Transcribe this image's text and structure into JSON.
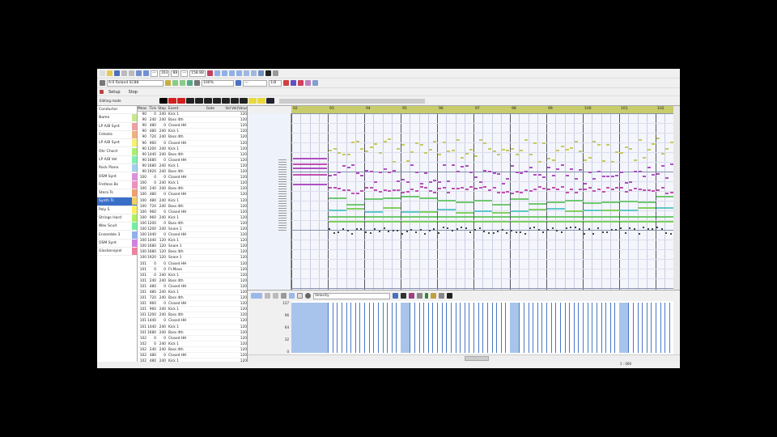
{
  "toolbar": {
    "row1": {
      "fields": [
        "---",
        "163",
        "88",
        "---",
        "158.88"
      ]
    },
    "row2": {
      "device_field": "A:0 Roland SC88",
      "mode_field": "100%",
      "zoom_field": "---",
      "snap_field": "1/8"
    },
    "row3": {
      "setup_label": "Setup",
      "stop_label": "Stop"
    },
    "palette_label": "Editing mode"
  },
  "tracks": [
    {
      "name": "Conductor",
      "color": "#ffffff"
    },
    {
      "name": "Name",
      "color": "#c8e890"
    },
    {
      "name": "LP A/B Synt",
      "color": "#f0a0a0"
    },
    {
      "name": "Celesta",
      "color": "#f0b080"
    },
    {
      "name": "LP A/B Synt",
      "color": "#f8f070"
    },
    {
      "name": "Ohr Chord",
      "color": "#a8f070"
    },
    {
      "name": "LP A/B Vel",
      "color": "#80f0b0"
    },
    {
      "name": "Rock Piano",
      "color": "#a0d0f0"
    },
    {
      "name": "OSM Synt",
      "color": "#e090e0"
    },
    {
      "name": "Fretless Bs",
      "color": "#f090c0"
    },
    {
      "name": "Stera Ts",
      "color": "#f0a070"
    },
    {
      "name": "Synth Ts",
      "color": "#f0d060",
      "selected": true
    },
    {
      "name": "Poly S",
      "color": "#f8f060"
    },
    {
      "name": "Strings Hard",
      "color": "#b0f060"
    },
    {
      "name": "Wav Scud",
      "color": "#70f0a0"
    },
    {
      "name": "Ensemble 3",
      "color": "#90b0f0"
    },
    {
      "name": "OSM Synt",
      "color": "#d080e0"
    },
    {
      "name": "Glockenspiel",
      "color": "#f080a0"
    }
  ],
  "event_list": {
    "headers": [
      "Meas",
      "Tick",
      "Step",
      "Event",
      "Gate",
      "Vel",
      "Vel(Value)"
    ],
    "rows": [
      [
        "90",
        "0",
        "240",
        "Kick 1",
        "",
        "",
        "120"
      ],
      [
        "90",
        "240",
        "240",
        "Bass 4th",
        "",
        "",
        "120"
      ],
      [
        "90",
        "480",
        "0",
        "Closed HH",
        "",
        "",
        "120"
      ],
      [
        "90",
        "480",
        "240",
        "Kick 1",
        "",
        "",
        "120"
      ],
      [
        "90",
        "720",
        "240",
        "Bass 4th",
        "",
        "",
        "120"
      ],
      [
        "90",
        "960",
        "0",
        "Closed HH",
        "",
        "",
        "120"
      ],
      [
        "90",
        "1200",
        "240",
        "Kick 1",
        "",
        "",
        "120"
      ],
      [
        "90",
        "1440",
        "240",
        "Bass 4th",
        "",
        "",
        "120"
      ],
      [
        "90",
        "1680",
        "0",
        "Closed HH",
        "",
        "",
        "120"
      ],
      [
        "90",
        "1680",
        "240",
        "Kick 1",
        "",
        "",
        "120"
      ],
      [
        "90",
        "1920",
        "240",
        "Bass 4th",
        "",
        "",
        "120"
      ],
      [
        "100",
        "0",
        "0",
        "Closed HH",
        "",
        "",
        "120"
      ],
      [
        "100",
        "0",
        "240",
        "Kick 1",
        "",
        "",
        "120"
      ],
      [
        "100",
        "240",
        "240",
        "Bass 4th",
        "",
        "",
        "120"
      ],
      [
        "100",
        "480",
        "0",
        "Closed HH",
        "",
        "",
        "120"
      ],
      [
        "100",
        "480",
        "240",
        "Kick 1",
        "",
        "",
        "120"
      ],
      [
        "100",
        "720",
        "240",
        "Bass 4th",
        "",
        "",
        "120"
      ],
      [
        "100",
        "960",
        "0",
        "Closed HH",
        "",
        "",
        "120"
      ],
      [
        "100",
        "960",
        "240",
        "Kick 1",
        "",
        "",
        "120"
      ],
      [
        "100",
        "1200",
        "0",
        "Bass 4th",
        "",
        "",
        "120"
      ],
      [
        "100",
        "1200",
        "240",
        "Snare 1",
        "",
        "",
        "120"
      ],
      [
        "100",
        "1440",
        "0",
        "Closed HH",
        "",
        "",
        "120"
      ],
      [
        "100",
        "1440",
        "120",
        "Kick 1",
        "",
        "",
        "120"
      ],
      [
        "100",
        "1680",
        "120",
        "Snare 1",
        "",
        "",
        "120"
      ],
      [
        "100",
        "1680",
        "120",
        "Bass 4th",
        "",
        "",
        "120"
      ],
      [
        "100",
        "1920",
        "120",
        "Snare 1",
        "",
        "",
        "120"
      ],
      [
        "101",
        "0",
        "0",
        "Closed HH",
        "",
        "",
        "120"
      ],
      [
        "101",
        "0",
        "0",
        "Ft.Move",
        "",
        "",
        "120"
      ],
      [
        "101",
        "0",
        "240",
        "Kick 1",
        "",
        "",
        "120"
      ],
      [
        "101",
        "240",
        "240",
        "Bass 4th",
        "",
        "",
        "120"
      ],
      [
        "101",
        "480",
        "0",
        "Closed HH",
        "",
        "",
        "120"
      ],
      [
        "101",
        "480",
        "240",
        "Kick 1",
        "",
        "",
        "120"
      ],
      [
        "101",
        "720",
        "240",
        "Bass 4th",
        "",
        "",
        "120"
      ],
      [
        "101",
        "960",
        "0",
        "Closed HH",
        "",
        "",
        "120"
      ],
      [
        "101",
        "960",
        "240",
        "Kick 1",
        "",
        "",
        "120"
      ],
      [
        "101",
        "1200",
        "240",
        "Bass 4th",
        "",
        "",
        "120"
      ],
      [
        "101",
        "1440",
        "0",
        "Closed HH",
        "",
        "",
        "120"
      ],
      [
        "101",
        "1440",
        "240",
        "Kick 1",
        "",
        "",
        "120"
      ],
      [
        "101",
        "1680",
        "240",
        "Bass 4th",
        "",
        "",
        "120"
      ],
      [
        "102",
        "0",
        "0",
        "Closed HH",
        "",
        "",
        "120"
      ],
      [
        "102",
        "0",
        "240",
        "Kick 1",
        "",
        "",
        "120"
      ],
      [
        "102",
        "240",
        "240",
        "Bass 4th",
        "",
        "",
        "120"
      ],
      [
        "102",
        "480",
        "0",
        "Closed HH",
        "",
        "",
        "120"
      ],
      [
        "102",
        "480",
        "240",
        "Kick 1",
        "",
        "",
        "120"
      ]
    ]
  },
  "piano_roll": {
    "measures": [
      "92",
      "93",
      "94",
      "95",
      "96",
      "97",
      "98",
      "99",
      "100",
      "101",
      "102"
    ]
  },
  "controller": {
    "select_field": "Velocity",
    "axis_labels": [
      "127",
      "96",
      "64",
      "32",
      "0"
    ]
  },
  "status": {
    "text": "1 : 000"
  },
  "colors": {
    "ruler": "#c8cc6a",
    "grid_bg": "#f4f6fc",
    "velocity_bar": "#4a78c8",
    "selected_track": "#3a6fc8"
  }
}
